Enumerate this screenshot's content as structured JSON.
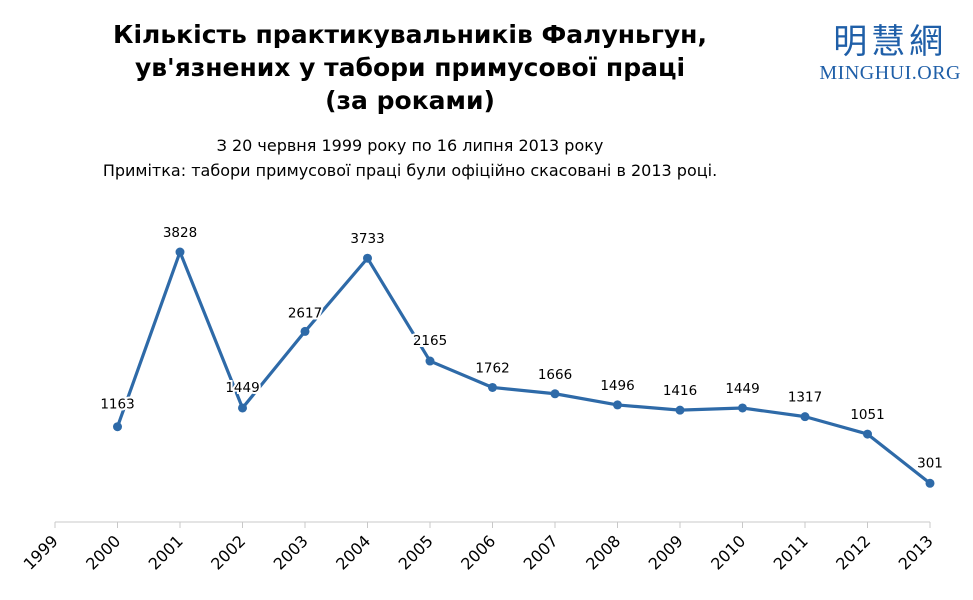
{
  "header": {
    "title_lines": [
      "Кількість практикувальників Фалуньгун,",
      "ув'язнених у табори примусової праці",
      "(за роками)"
    ],
    "subtitle_lines": [
      "З 20 червня 1999 року по 16 липня 2013 року",
      "Примітка: табори примусової праці були офіційно скасовані в 2013 році."
    ]
  },
  "logo": {
    "text": "明慧網",
    "latin": "MINGHUI.ORG",
    "color": "#1f5fa8"
  },
  "chart_data": {
    "type": "line",
    "title": "Кількість практикувальників Фалуньгун, ув'язнених у табори примусової праці (за роками)",
    "subtitle": "З 20 червня 1999 року по 16 липня 2013 року",
    "categories": [
      "1999",
      "2000",
      "2001",
      "2002",
      "2003",
      "2004",
      "2005",
      "2006",
      "2007",
      "2008",
      "2009",
      "2010",
      "2011",
      "2012",
      "2013"
    ],
    "series": [
      {
        "color": "#2e6aa8",
        "x": [
          "2000",
          "2001",
          "2002",
          "2003",
          "2004",
          "2005",
          "2006",
          "2007",
          "2008",
          "2009",
          "2010",
          "2011",
          "2012",
          "2013"
        ],
        "values": [
          1163,
          3828,
          1449,
          2617,
          3733,
          2165,
          1762,
          1666,
          1496,
          1416,
          1449,
          1317,
          1051,
          301
        ]
      }
    ],
    "ylim": [
      0,
      4000
    ],
    "y_axis_visible": false,
    "grid": false,
    "data_labels": true,
    "xlabel": "",
    "ylabel": ""
  }
}
